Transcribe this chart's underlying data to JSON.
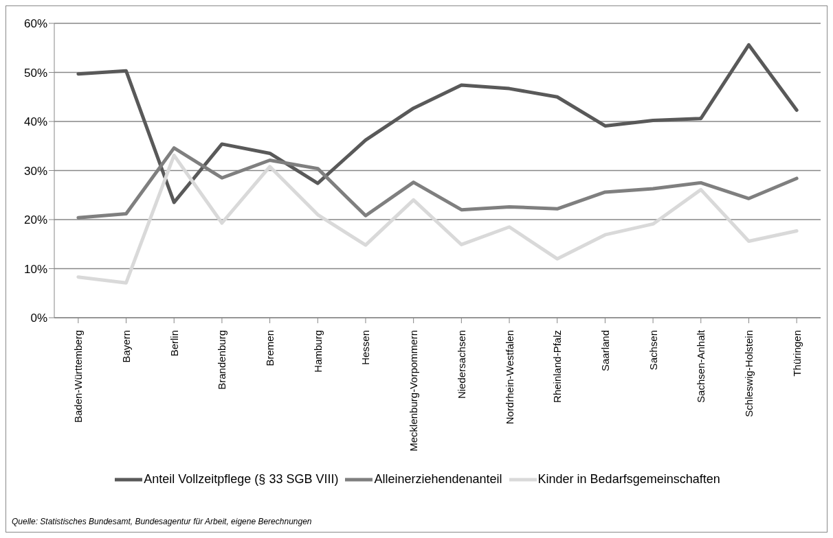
{
  "chart_data": {
    "type": "line",
    "categories": [
      "Baden-Württemberg",
      "Bayern",
      "Berlin",
      "Brandenburg",
      "Bremen",
      "Hamburg",
      "Hessen",
      "Mecklenburg-Vorpommern",
      "Niedersachsen",
      "Nordrhein-Westfalen",
      "Rheinland-Pfalz",
      "Saarland",
      "Sachsen",
      "Sachsen-Anhalt",
      "Schleswig-Holstein",
      "Thüringen"
    ],
    "series": [
      {
        "name": "Anteil Vollzeitpflege (§ 33 SGB VIII)",
        "color": "#595959",
        "values": [
          49.7,
          50.3,
          23.5,
          35.4,
          33.5,
          27.4,
          36.2,
          42.7,
          47.4,
          46.7,
          45.0,
          39.1,
          40.2,
          40.6,
          55.6,
          42.3
        ]
      },
      {
        "name": "Alleinerziehendenanteil",
        "color": "#7f7f7f",
        "values": [
          20.4,
          21.2,
          34.6,
          28.5,
          32.1,
          30.4,
          20.8,
          27.6,
          22.0,
          22.6,
          22.2,
          25.6,
          26.3,
          27.5,
          24.3,
          28.4
        ]
      },
      {
        "name": "Kinder in Bedarfsgemeinschaften",
        "color": "#d9d9d9",
        "values": [
          8.3,
          7.1,
          33.1,
          19.3,
          30.8,
          21.0,
          14.8,
          24.0,
          14.9,
          18.5,
          12.0,
          16.9,
          19.1,
          26.1,
          15.6,
          17.7
        ]
      }
    ],
    "ylim": [
      0,
      60
    ],
    "yticks": [
      {
        "value": 0,
        "label": "0%"
      },
      {
        "value": 10,
        "label": "10%"
      },
      {
        "value": 20,
        "label": "20%"
      },
      {
        "value": 30,
        "label": "30%"
      },
      {
        "value": 40,
        "label": "40%"
      },
      {
        "value": 50,
        "label": "50%"
      },
      {
        "value": 60,
        "label": "60%"
      }
    ],
    "grid": "y",
    "legend": "bottom",
    "marker": "none",
    "line_style": "solid",
    "annotations": [
      "Quelle: Statistisches Bundesamt, Bundesagentur für Arbeit, eigene Berechnungen"
    ]
  }
}
